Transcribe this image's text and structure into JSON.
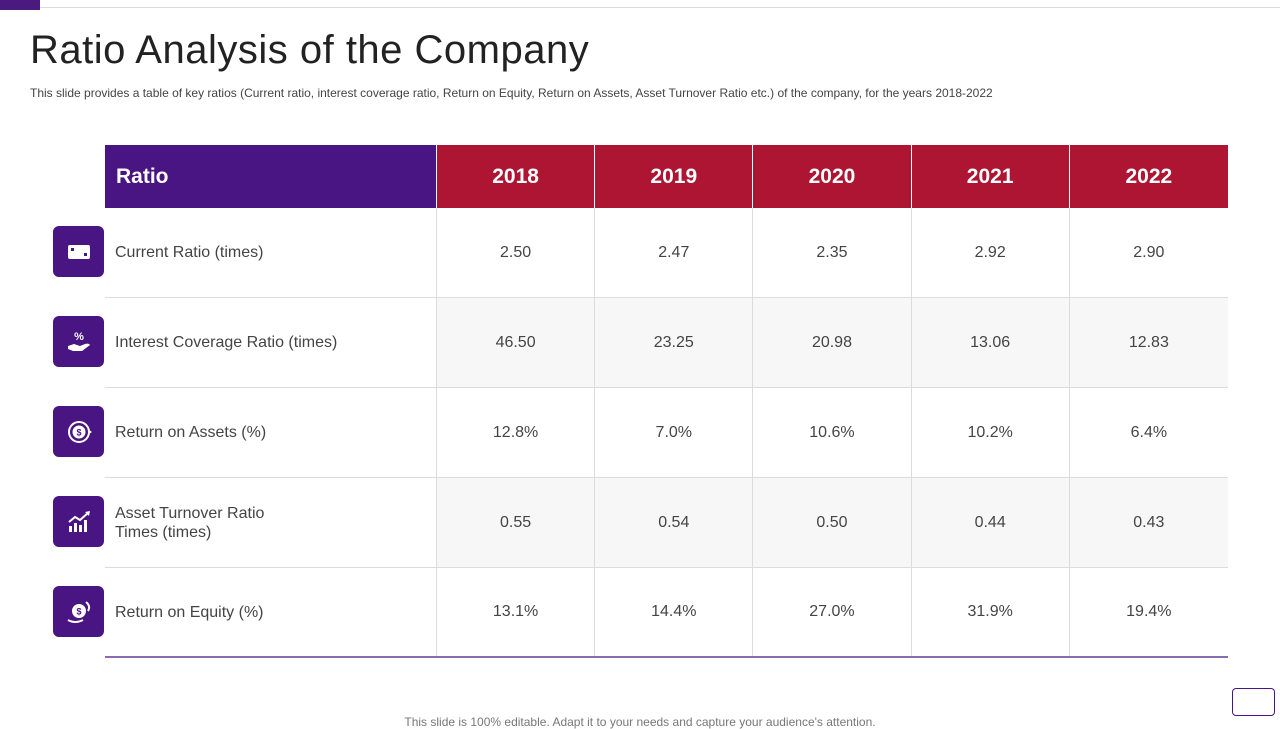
{
  "slide": {
    "title": "Ratio Analysis of the Company",
    "subtitle": "This slide provides a table of key ratios (Current ratio, interest coverage ratio, Return on Equity, Return on Assets, Asset Turnover Ratio etc.) of the company, for the years 2018-2022",
    "footer": "This slide is 100% editable. Adapt it to your needs and capture your audience's attention."
  },
  "table": {
    "header_label": "Ratio",
    "years": [
      "2018",
      "2019",
      "2020",
      "2021",
      "2022"
    ],
    "rows": [
      {
        "label": "Current  Ratio (times)",
        "icon": "wallet-icon",
        "values": [
          "2.50",
          "2.47",
          "2.35",
          "2.92",
          "2.90"
        ]
      },
      {
        "label": "Interest  Coverage Ratio (times)",
        "icon": "percent-hand-icon",
        "values": [
          "46.50",
          "23.25",
          "20.98",
          "13.06",
          "12.83"
        ]
      },
      {
        "label": "Return  on Assets (%)",
        "icon": "dollar-coin-icon",
        "values": [
          "12.8%",
          "7.0%",
          "10.6%",
          "10.2%",
          "6.4%"
        ]
      },
      {
        "label": "Asset Turnover  Ratio\nTimes (times)",
        "icon": "growth-chart-icon",
        "values": [
          "0.55",
          "0.54",
          "0.50",
          "0.44",
          "0.43"
        ]
      },
      {
        "label": "Return  on Equity (%)",
        "icon": "money-return-icon",
        "values": [
          "13.1%",
          "14.4%",
          "27.0%",
          "31.9%",
          "19.4%"
        ]
      }
    ]
  },
  "colors": {
    "purple": "#481582",
    "crimson": "#ad1532"
  }
}
